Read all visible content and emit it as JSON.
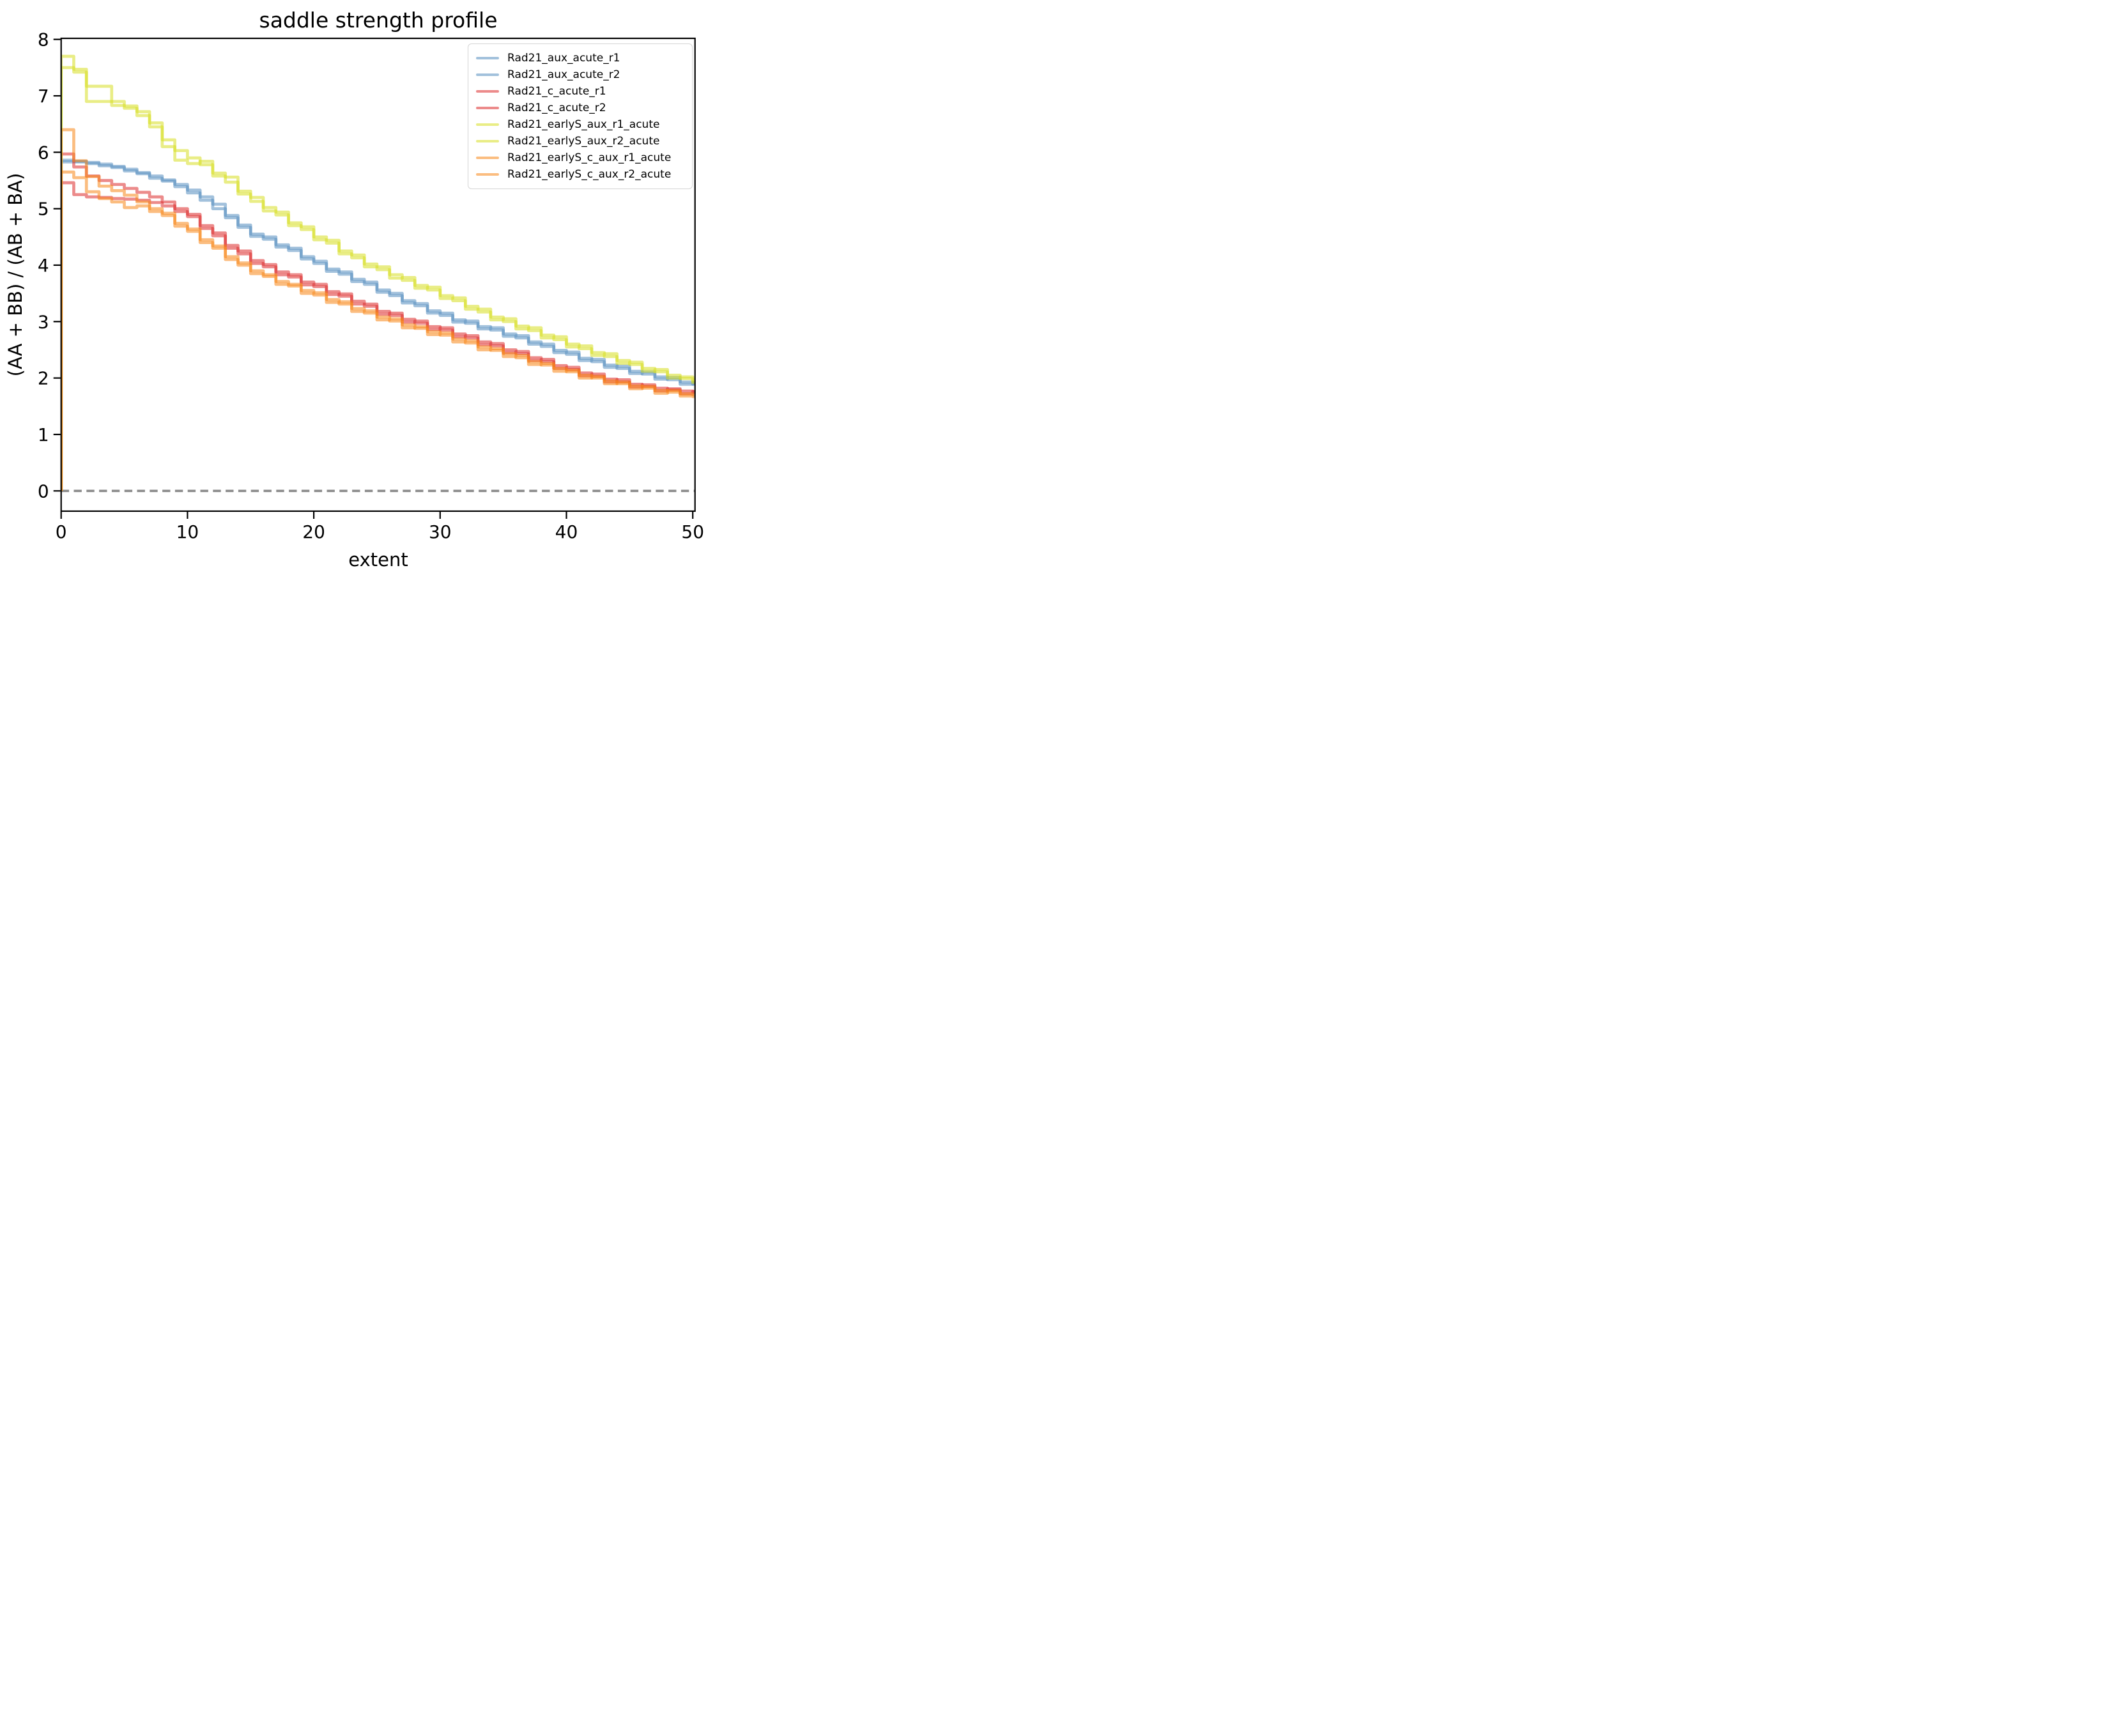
{
  "chart_data": {
    "type": "line",
    "subtype": "step-post",
    "title": "saddle strength profile",
    "xlabel": "extent",
    "ylabel": "(AA + BB) / (AB + BA)",
    "x_ticks": [
      0,
      10,
      20,
      30,
      40,
      50
    ],
    "y_ticks": [
      0,
      1,
      2,
      3,
      4,
      5,
      6,
      7,
      8
    ],
    "xlim": [
      0,
      50.2
    ],
    "ylim": [
      -0.36,
      8.02
    ],
    "grid": false,
    "legend_position": "upper right",
    "reference_line": {
      "y": 0,
      "style": "dashed",
      "color": "#8a8a8a"
    },
    "line_opacity": 0.55,
    "x_step": 1,
    "series": [
      {
        "label": "Rad21_aux_acute_r1",
        "color": "#568ebf",
        "values": [
          5.86,
          5.84,
          5.82,
          5.79,
          5.75,
          5.7,
          5.64,
          5.58,
          5.51,
          5.43,
          5.33,
          5.21,
          5.08,
          4.88,
          4.67,
          4.55,
          4.46,
          4.36,
          4.26,
          4.15,
          4.03,
          3.93,
          3.84,
          3.75,
          3.66,
          3.56,
          3.46,
          3.37,
          3.28,
          3.19,
          3.11,
          3.03,
          2.97,
          2.91,
          2.85,
          2.78,
          2.71,
          2.64,
          2.56,
          2.49,
          2.42,
          2.35,
          2.29,
          2.23,
          2.17,
          2.12,
          2.07,
          2.02,
          1.97,
          1.93,
          1.89,
          1.86
        ]
      },
      {
        "label": "Rad21_aux_acute_r2",
        "color": "#568ebf",
        "values": [
          5.83,
          5.83,
          5.8,
          5.76,
          5.73,
          5.67,
          5.62,
          5.54,
          5.49,
          5.39,
          5.28,
          5.15,
          5.0,
          4.84,
          4.71,
          4.51,
          4.5,
          4.32,
          4.3,
          4.11,
          4.07,
          3.89,
          3.88,
          3.71,
          3.7,
          3.52,
          3.5,
          3.33,
          3.32,
          3.15,
          3.15,
          2.99,
          3.01,
          2.87,
          2.89,
          2.74,
          2.75,
          2.6,
          2.6,
          2.45,
          2.46,
          2.31,
          2.33,
          2.19,
          2.21,
          2.08,
          2.11,
          1.98,
          2.01,
          1.89,
          1.92,
          1.82
        ]
      },
      {
        "label": "Rad21_c_acute_r1",
        "color": "#dc2c2c",
        "values": [
          5.97,
          5.74,
          5.58,
          5.5,
          5.43,
          5.36,
          5.29,
          5.21,
          5.12,
          5.0,
          4.86,
          4.7,
          4.52,
          4.35,
          4.2,
          4.08,
          3.97,
          3.88,
          3.79,
          3.7,
          3.62,
          3.53,
          3.45,
          3.36,
          3.27,
          3.18,
          3.11,
          3.04,
          2.97,
          2.91,
          2.85,
          2.78,
          2.71,
          2.64,
          2.57,
          2.5,
          2.43,
          2.36,
          2.29,
          2.22,
          2.15,
          2.09,
          2.03,
          1.98,
          1.93,
          1.89,
          1.85,
          1.82,
          1.79,
          1.77,
          1.75,
          1.73
        ]
      },
      {
        "label": "Rad21_c_acute_r2",
        "color": "#dc2c2c",
        "values": [
          5.46,
          5.25,
          5.21,
          5.2,
          5.18,
          5.17,
          5.15,
          5.11,
          5.05,
          4.95,
          4.9,
          4.65,
          4.57,
          4.3,
          4.25,
          4.03,
          4.01,
          3.83,
          3.83,
          3.65,
          3.66,
          3.48,
          3.49,
          3.31,
          3.31,
          3.13,
          3.15,
          2.99,
          3.01,
          2.86,
          2.89,
          2.73,
          2.75,
          2.59,
          2.61,
          2.45,
          2.47,
          2.31,
          2.33,
          2.17,
          2.19,
          2.04,
          2.07,
          1.93,
          1.97,
          1.84,
          1.88,
          1.77,
          1.81,
          1.72,
          1.76,
          1.7
        ]
      },
      {
        "label": "Rad21_earlyS_aux_r1_acute",
        "color": "#d7de23",
        "values": [
          7.7,
          7.47,
          7.17,
          7.17,
          6.83,
          6.82,
          6.65,
          6.45,
          6.22,
          6.03,
          5.9,
          5.78,
          5.63,
          5.47,
          5.31,
          5.13,
          5.02,
          4.89,
          4.75,
          4.63,
          4.5,
          4.39,
          4.25,
          4.13,
          4.02,
          3.92,
          3.83,
          3.73,
          3.64,
          3.56,
          3.46,
          3.37,
          3.27,
          3.17,
          3.08,
          3.0,
          2.92,
          2.84,
          2.76,
          2.68,
          2.6,
          2.52,
          2.45,
          2.38,
          2.31,
          2.24,
          2.17,
          2.11,
          2.05,
          1.99,
          1.95,
          1.92
        ]
      },
      {
        "label": "Rad21_earlyS_aux_r2_acute",
        "color": "#d7de23",
        "values": [
          7.5,
          7.42,
          6.9,
          6.9,
          6.9,
          6.78,
          6.72,
          6.52,
          6.1,
          5.86,
          5.8,
          5.84,
          5.58,
          5.56,
          5.26,
          5.2,
          4.96,
          4.94,
          4.7,
          4.68,
          4.45,
          4.44,
          4.2,
          4.18,
          3.97,
          3.97,
          3.77,
          3.78,
          3.59,
          3.61,
          3.41,
          3.42,
          3.22,
          3.22,
          3.03,
          3.05,
          2.87,
          2.89,
          2.71,
          2.73,
          2.55,
          2.57,
          2.4,
          2.43,
          2.26,
          2.28,
          2.12,
          2.15,
          2.0,
          2.02,
          1.92,
          1.95
        ]
      },
      {
        "label": "Rad21_earlyS_c_aux_r1_acute",
        "color": "#f88718",
        "values": [
          6.4,
          5.85,
          5.57,
          5.4,
          5.32,
          5.24,
          5.12,
          5.0,
          4.88,
          4.74,
          4.6,
          4.45,
          4.3,
          4.15,
          4.0,
          3.9,
          3.8,
          3.71,
          3.63,
          3.55,
          3.47,
          3.39,
          3.31,
          3.23,
          3.15,
          3.08,
          3.01,
          2.94,
          2.88,
          2.82,
          2.76,
          2.69,
          2.62,
          2.55,
          2.49,
          2.43,
          2.36,
          2.29,
          2.23,
          2.17,
          2.11,
          2.05,
          2.0,
          1.95,
          1.9,
          1.86,
          1.82,
          1.78,
          1.75,
          1.72,
          1.7,
          1.68
        ]
      },
      {
        "label": "Rad21_earlyS_c_aux_r2_acute",
        "color": "#f88718",
        "values": [
          5.65,
          5.55,
          5.3,
          5.18,
          5.12,
          5.02,
          5.05,
          4.95,
          4.92,
          4.69,
          4.64,
          4.4,
          4.34,
          4.1,
          4.04,
          3.85,
          3.83,
          3.66,
          3.66,
          3.5,
          3.51,
          3.34,
          3.35,
          3.18,
          3.19,
          3.03,
          3.05,
          2.89,
          2.91,
          2.77,
          2.8,
          2.64,
          2.66,
          2.5,
          2.52,
          2.38,
          2.4,
          2.24,
          2.26,
          2.12,
          2.14,
          2.0,
          2.03,
          1.9,
          1.93,
          1.81,
          1.85,
          1.73,
          1.78,
          1.68,
          1.67,
          1.64
        ]
      }
    ]
  }
}
